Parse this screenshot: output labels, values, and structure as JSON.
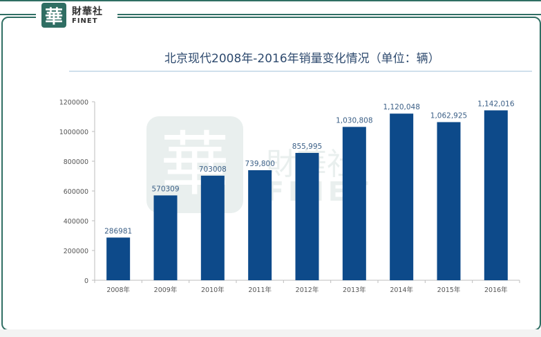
{
  "logo": {
    "glyph": "華",
    "name_cn": "財華社",
    "name_en": "FINET"
  },
  "watermark": {
    "glyph": "華",
    "name_cn": "財華社",
    "name_en": "FINET"
  },
  "colors": {
    "bar": "#0d4a8a",
    "brand": "#2f6e63",
    "title": "#2e4a6e",
    "data_label": "#3b5f86",
    "axis_text": "#555555"
  },
  "chart_data": {
    "type": "bar",
    "title": "北京现代2008年-2016年销量变化情况（单位：辆）",
    "categories": [
      "2008年",
      "2009年",
      "2010年",
      "2011年",
      "2012年",
      "2013年",
      "2014年",
      "2015年",
      "2016年"
    ],
    "values": [
      286981,
      570309,
      703008,
      739800,
      855995,
      1030808,
      1120048,
      1062925,
      1142016
    ],
    "data_labels": [
      "286981",
      "570309",
      "703008",
      "739,800",
      "855,995",
      "1,030,808",
      "1,120,048",
      "1,062,925",
      "1,142,016"
    ],
    "ylim": [
      0,
      1200000
    ],
    "yticks": [
      "0",
      "200000",
      "400000",
      "600000",
      "800000",
      "1000000",
      "1200000"
    ],
    "xlabel": "",
    "ylabel": "",
    "grid": false,
    "legend": "none"
  }
}
